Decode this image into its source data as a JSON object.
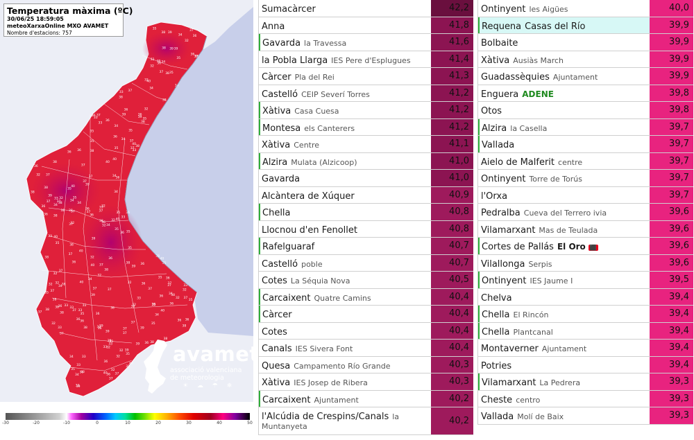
{
  "map": {
    "title": "Temperatura màxima (ºC)",
    "datetime": "30/06/25 18:59:05",
    "source": "meteoXarxaOnline MXO AVAMET",
    "stations_count": "Nombre d'estacions: 757",
    "logo_word": "avamet",
    "logo_sub1": "associació valenciana",
    "logo_sub2": "de meteorologia",
    "logo_icons": "☀ ☁ ☂ ❄",
    "land_color": "#e0203a",
    "hot_color": "#c0006a",
    "sea_color": "#c8cfea",
    "legend": {
      "ticks": [
        "-30",
        "-20",
        "-10",
        "0",
        "10",
        "20",
        "30",
        "40",
        "50"
      ],
      "min": -30,
      "max": 50
    }
  },
  "table_left": [
    {
      "location": "Sumacàrcer",
      "site": "",
      "value": "42,2",
      "color": "#6a0f3e"
    },
    {
      "location": "Anna",
      "site": "",
      "value": "41,8",
      "color": "#8c1452"
    },
    {
      "location": "Gavarda",
      "site": "la Travessa",
      "value": "41,6",
      "color": "#8c1452",
      "green": true
    },
    {
      "location": "la Pobla Llarga",
      "site": "IES Pere d'Esplugues",
      "value": "41,4",
      "color": "#8c1452"
    },
    {
      "location": "Càrcer",
      "site": "Pla del Rei",
      "value": "41,3",
      "color": "#8c1452"
    },
    {
      "location": "Castelló",
      "site": "CEIP Severí Torres",
      "value": "41,2",
      "color": "#8c1452"
    },
    {
      "location": "Xàtiva",
      "site": "Casa Cuesa",
      "value": "41,2",
      "color": "#8c1452",
      "green": true
    },
    {
      "location": "Montesa",
      "site": "els Canterers",
      "value": "41,2",
      "color": "#8c1452",
      "green": true
    },
    {
      "location": "Xàtiva",
      "site": "Centre",
      "value": "41,1",
      "color": "#8c1452"
    },
    {
      "location": "Alzira",
      "site": "Mulata (Alzicoop)",
      "value": "41,0",
      "color": "#8c1452",
      "green": true
    },
    {
      "location": "Gavarda",
      "site": "",
      "value": "41,0",
      "color": "#8c1452"
    },
    {
      "location": "Alcàntera de Xúquer",
      "site": "",
      "value": "40,9",
      "color": "#9e1a5c"
    },
    {
      "location": "Chella",
      "site": "",
      "value": "40,8",
      "color": "#9e1a5c",
      "green": true
    },
    {
      "location": "Llocnou d'en Fenollet",
      "site": "",
      "value": "40,8",
      "color": "#9e1a5c"
    },
    {
      "location": "Rafelguaraf",
      "site": "",
      "value": "40,7",
      "color": "#9e1a5c",
      "green": true
    },
    {
      "location": "Castelló",
      "site": "poble",
      "value": "40,7",
      "color": "#9e1a5c"
    },
    {
      "location": "Cotes",
      "site": "La Séquia Nova",
      "value": "40,5",
      "color": "#9e1a5c"
    },
    {
      "location": "Carcaixent",
      "site": "Quatre Camins",
      "value": "40,4",
      "color": "#9e1a5c",
      "green": true
    },
    {
      "location": "Càrcer",
      "site": "",
      "value": "40,4",
      "color": "#9e1a5c",
      "green": true
    },
    {
      "location": "Cotes",
      "site": "",
      "value": "40,4",
      "color": "#9e1a5c"
    },
    {
      "location": "Canals",
      "site": "IES Sivera Font",
      "value": "40,4",
      "color": "#9e1a5c"
    },
    {
      "location": "Quesa",
      "site": "Campamento Río Grande",
      "value": "40,3",
      "color": "#9e1a5c"
    },
    {
      "location": "Xàtiva",
      "site": "IES Josep de Ribera",
      "value": "40,3",
      "color": "#9e1a5c"
    },
    {
      "location": "Carcaixent",
      "site": "Ajuntament",
      "value": "40,2",
      "color": "#9e1a5c",
      "green": true
    },
    {
      "location": "l'Alcúdia de Crespins/Canals",
      "site": "la",
      "site2": "Muntanyeta",
      "value": "40,2",
      "color": "#9e1a5c",
      "tall": true
    }
  ],
  "table_right": [
    {
      "location": "Ontinyent",
      "site": "les Aigües",
      "value": "40,0",
      "color": "#e8237f"
    },
    {
      "location": "Requena",
      "site": "Casas del Río",
      "value": "39,9",
      "color": "#e8237f",
      "green": true,
      "highlight": true
    },
    {
      "location": "Bolbaite",
      "site": "",
      "value": "39,9",
      "color": "#e8237f"
    },
    {
      "location": "Xàtiva",
      "site": "Ausiàs March",
      "value": "39,9",
      "color": "#e8237f"
    },
    {
      "location": "Guadassèquies",
      "site": "Ajuntament",
      "value": "39,9",
      "color": "#e8237f"
    },
    {
      "location": "Enguera",
      "site": "ADENE",
      "value": "39,8",
      "color": "#e8237f"
    },
    {
      "location": "Otos",
      "site": "",
      "value": "39,8",
      "color": "#e8237f"
    },
    {
      "location": "Alzira",
      "site": "la Casella",
      "value": "39,7",
      "color": "#e8237f",
      "green": true
    },
    {
      "location": "Vallada",
      "site": "",
      "value": "39,7",
      "color": "#e8237f",
      "green": true
    },
    {
      "location": "Aielo de Malferit",
      "site": "centre",
      "value": "39,7",
      "color": "#e8237f"
    },
    {
      "location": "Ontinyent",
      "site": "Torre de Torús",
      "value": "39,7",
      "color": "#e8237f"
    },
    {
      "location": "l'Orxa",
      "site": "",
      "value": "39,7",
      "color": "#e8237f"
    },
    {
      "location": "Pedralba",
      "site": "Cueva del Terrero ivia",
      "value": "39,6",
      "color": "#e8237f"
    },
    {
      "location": "Vilamarxant",
      "site": "Mas de Teulada",
      "value": "39,6",
      "color": "#e8237f"
    },
    {
      "location": "Cortes de Pallás",
      "site": "El Oro",
      "badge": "⬛",
      "value": "39,6",
      "color": "#e8237f",
      "green": true
    },
    {
      "location": "Vilallonga",
      "site": "Serpis",
      "value": "39,6",
      "color": "#e8237f"
    },
    {
      "location": "Ontinyent",
      "site": "IES Jaume I",
      "value": "39,5",
      "color": "#e8237f",
      "green": true
    },
    {
      "location": "Chelva",
      "site": "",
      "value": "39,4",
      "color": "#e8237f"
    },
    {
      "location": "Chella",
      "site": "El Rincón",
      "value": "39,4",
      "color": "#e8237f",
      "green": true
    },
    {
      "location": "Chella",
      "site": "Plantcanal",
      "value": "39,4",
      "color": "#e8237f",
      "green": true
    },
    {
      "location": "Montaverner",
      "site": "Ajuntament",
      "value": "39,4",
      "color": "#e8237f"
    },
    {
      "location": "Potries",
      "site": "",
      "value": "39,4",
      "color": "#e8237f"
    },
    {
      "location": "Vilamarxant",
      "site": "La Pedrera",
      "value": "39,3",
      "color": "#e8237f",
      "green": true
    },
    {
      "location": "Cheste",
      "site": "centro",
      "value": "39,3",
      "color": "#e8237f"
    },
    {
      "location": "Vallada",
      "site": "Molí de Baix",
      "value": "39,3",
      "color": "#e8237f"
    }
  ]
}
